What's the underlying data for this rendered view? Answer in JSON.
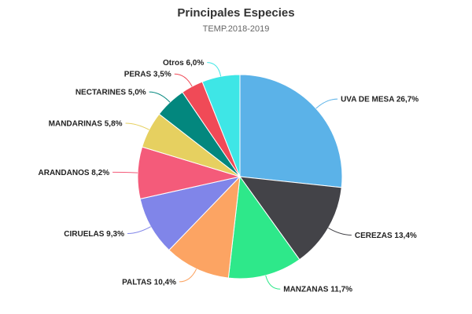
{
  "chart_data": {
    "type": "pie",
    "title": "Principales Especies",
    "subtitle": "TEMP.2018-2019",
    "slices": [
      {
        "label": "UVA DE MESA",
        "value": 26.7,
        "display": "UVA DE MESA 26,7%",
        "color": "#5BB2E8"
      },
      {
        "label": "CEREZAS",
        "value": 13.4,
        "display": "CEREZAS 13,4%",
        "color": "#434348"
      },
      {
        "label": "MANZANAS",
        "value": 11.7,
        "display": "MANZANAS 11,7%",
        "color": "#2EE88A"
      },
      {
        "label": "PALTAS",
        "value": 10.4,
        "display": "PALTAS 10,4%",
        "color": "#FCA463"
      },
      {
        "label": "CIRUELAS",
        "value": 9.3,
        "display": "CIRUELAS 9,3%",
        "color": "#8085E9"
      },
      {
        "label": "ARANDANOS",
        "value": 8.2,
        "display": "ARANDANOS 8,2%",
        "color": "#F45B7A"
      },
      {
        "label": "MANDARINAS",
        "value": 5.8,
        "display": "MANDARINAS 5,8%",
        "color": "#E6D060"
      },
      {
        "label": "NECTARINES",
        "value": 5.0,
        "display": "NECTARINES 5,0%",
        "color": "#03877E"
      },
      {
        "label": "PERAS",
        "value": 3.5,
        "display": "PERAS 3,5%",
        "color": "#F04A57"
      },
      {
        "label": "Otros",
        "value": 6.0,
        "display": "Otros 6,0%",
        "color": "#3EE6E6"
      }
    ]
  }
}
